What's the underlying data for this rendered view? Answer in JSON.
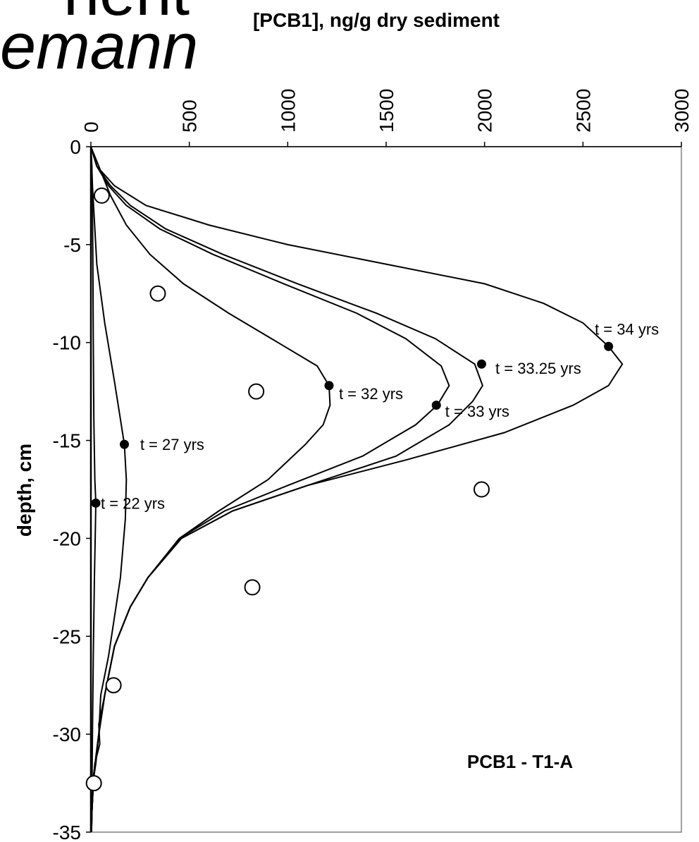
{
  "slide_fragments": {
    "line1": "nent",
    "line2": "emann"
  },
  "chart_data": {
    "type": "line",
    "title": "PCB1 - T1-A",
    "xlabel": "[PCB1], ng/g dry sediment",
    "ylabel": "depth, cm",
    "xlim": [
      0,
      3000
    ],
    "ylim": [
      -35,
      0
    ],
    "xticks": [
      0,
      500,
      1000,
      1500,
      2000,
      2500,
      3000
    ],
    "yticks": [
      0,
      -5,
      -10,
      -15,
      -20,
      -25,
      -30,
      -35
    ],
    "grid": false,
    "series": [
      {
        "label": "t = 22 yrs",
        "points": [
          [
            0,
            0
          ],
          [
            5,
            -1
          ],
          [
            8,
            -3
          ],
          [
            10,
            -6
          ],
          [
            12,
            -10
          ],
          [
            15,
            -14
          ],
          [
            20,
            -17
          ],
          [
            25,
            -18.2
          ],
          [
            22,
            -20
          ],
          [
            18,
            -22
          ],
          [
            12,
            -26
          ],
          [
            8,
            -30
          ],
          [
            5,
            -33
          ],
          [
            3,
            -35
          ]
        ],
        "marker": [
          25,
          -18.2
        ],
        "label_pos": [
          50,
          -18.2
        ]
      },
      {
        "label": "t = 27 yrs",
        "points": [
          [
            0,
            0
          ],
          [
            8,
            -2
          ],
          [
            30,
            -6
          ],
          [
            70,
            -9
          ],
          [
            120,
            -12
          ],
          [
            170,
            -15.2
          ],
          [
            180,
            -17
          ],
          [
            175,
            -19
          ],
          [
            150,
            -22
          ],
          [
            90,
            -26
          ],
          [
            50,
            -28
          ],
          [
            40,
            -30
          ],
          [
            25,
            -31.5
          ],
          [
            10,
            -32.5
          ],
          [
            5,
            -34
          ],
          [
            3,
            -35
          ]
        ],
        "marker": [
          170,
          -15.2
        ],
        "label_pos": [
          250,
          -15.2
        ]
      },
      {
        "label": "t = 32 yrs",
        "points": [
          [
            0,
            0
          ],
          [
            40,
            -1
          ],
          [
            100,
            -2.5
          ],
          [
            180,
            -4
          ],
          [
            300,
            -5.5
          ],
          [
            470,
            -7
          ],
          [
            700,
            -8.5
          ],
          [
            950,
            -10
          ],
          [
            1150,
            -11.2
          ],
          [
            1210,
            -12.2
          ],
          [
            1215,
            -13.2
          ],
          [
            1180,
            -14.2
          ],
          [
            1090,
            -15.2
          ],
          [
            900,
            -17
          ],
          [
            650,
            -18.6
          ],
          [
            450,
            -20
          ],
          [
            290,
            -22
          ],
          [
            200,
            -23.5
          ],
          [
            120,
            -25.5
          ],
          [
            70,
            -28
          ],
          [
            40,
            -29.5
          ],
          [
            45,
            -30.5
          ],
          [
            20,
            -31.5
          ],
          [
            8,
            -33
          ],
          [
            3,
            -35
          ]
        ],
        "marker": [
          1210,
          -12.2
        ],
        "label_pos": [
          1260,
          -12.6
        ]
      },
      {
        "label": "t = 33 yrs",
        "points": [
          [
            0,
            0
          ],
          [
            30,
            -1
          ],
          [
            90,
            -2
          ],
          [
            180,
            -3
          ],
          [
            350,
            -4.2
          ],
          [
            620,
            -5.5
          ],
          [
            980,
            -7
          ],
          [
            1350,
            -8.5
          ],
          [
            1600,
            -9.8
          ],
          [
            1780,
            -11.2
          ],
          [
            1820,
            -12.2
          ],
          [
            1760,
            -13.2
          ],
          [
            1650,
            -14.2
          ],
          [
            1380,
            -15.8
          ],
          [
            1000,
            -17.3
          ],
          [
            680,
            -18.6
          ],
          [
            450,
            -20
          ],
          [
            290,
            -22
          ],
          [
            200,
            -23.5
          ],
          [
            120,
            -25.5
          ],
          [
            70,
            -28
          ],
          [
            40,
            -30
          ],
          [
            15,
            -32
          ],
          [
            5,
            -34
          ],
          [
            3,
            -35
          ]
        ],
        "marker": [
          1755,
          -13.2
        ],
        "label_pos": [
          1800,
          -13.5
        ]
      },
      {
        "label": "t = 33.25 yrs",
        "points": [
          [
            0,
            0
          ],
          [
            30,
            -1
          ],
          [
            100,
            -2
          ],
          [
            200,
            -3
          ],
          [
            380,
            -4.2
          ],
          [
            670,
            -5.5
          ],
          [
            1050,
            -7
          ],
          [
            1450,
            -8.5
          ],
          [
            1750,
            -9.8
          ],
          [
            1950,
            -11.1
          ],
          [
            1990,
            -12.2
          ],
          [
            1940,
            -13
          ],
          [
            1820,
            -14.2
          ],
          [
            1550,
            -15.8
          ],
          [
            1100,
            -17.3
          ],
          [
            720,
            -18.6
          ],
          [
            460,
            -20
          ],
          [
            290,
            -22
          ],
          [
            200,
            -23.5
          ],
          [
            120,
            -25.5
          ],
          [
            70,
            -28
          ],
          [
            40,
            -30
          ],
          [
            15,
            -32
          ],
          [
            5,
            -34
          ],
          [
            3,
            -35
          ]
        ],
        "marker": [
          1985,
          -11.1
        ],
        "label_pos": [
          2055,
          -11.3
        ]
      },
      {
        "label": "t = 34 yrs",
        "points": [
          [
            0,
            0
          ],
          [
            30,
            -1
          ],
          [
            120,
            -2
          ],
          [
            280,
            -3
          ],
          [
            600,
            -4
          ],
          [
            1000,
            -5
          ],
          [
            1500,
            -6
          ],
          [
            2000,
            -7
          ],
          [
            2300,
            -8
          ],
          [
            2500,
            -9
          ],
          [
            2630,
            -10.2
          ],
          [
            2700,
            -11.1
          ],
          [
            2630,
            -12.2
          ],
          [
            2450,
            -13.2
          ],
          [
            2100,
            -14.6
          ],
          [
            1600,
            -16
          ],
          [
            1100,
            -17.3
          ],
          [
            720,
            -18.6
          ],
          [
            460,
            -20
          ],
          [
            290,
            -22
          ],
          [
            200,
            -23.5
          ],
          [
            120,
            -25.5
          ],
          [
            70,
            -28
          ],
          [
            40,
            -30
          ],
          [
            15,
            -32
          ],
          [
            5,
            -34
          ],
          [
            3,
            -35
          ]
        ],
        "marker": [
          2630,
          -10.2
        ],
        "label_pos": [
          2560,
          -9.3
        ]
      }
    ],
    "observations": [
      [
        55,
        -2.5
      ],
      [
        340,
        -7.5
      ],
      [
        840,
        -12.5
      ],
      [
        1985,
        -17.5
      ],
      [
        820,
        -22.5
      ],
      [
        115,
        -27.5
      ],
      [
        15,
        -32.5
      ]
    ]
  }
}
